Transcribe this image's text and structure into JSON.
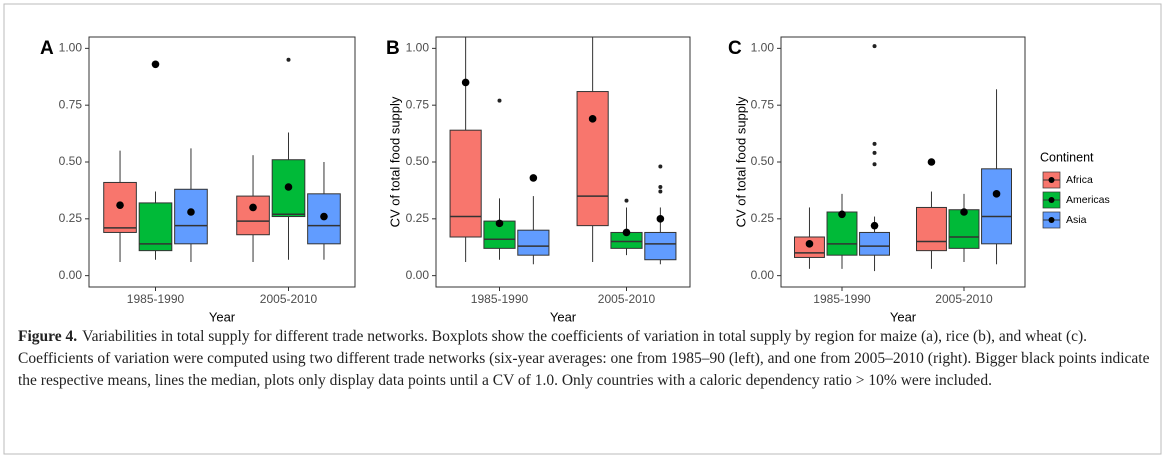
{
  "chart_data": [
    {
      "type": "box",
      "panel_label": "A",
      "xlabel": "Year",
      "categories": [
        "1985-1990",
        "2005-2010"
      ],
      "ylim": [
        -0.05,
        1.05
      ],
      "yticks": [
        {
          "value": 0,
          "label": "0.00"
        },
        {
          "value": 0.25,
          "label": "0.25"
        },
        {
          "value": 0.5,
          "label": "0.50"
        },
        {
          "value": 0.75,
          "label": "0.75"
        },
        {
          "value": 1,
          "label": "1.00"
        }
      ],
      "series": [
        {
          "color": "#F8766D",
          "min": [
            0.06,
            0.06
          ],
          "q1": [
            0.19,
            0.18
          ],
          "median": [
            0.21,
            0.24
          ],
          "q3": [
            0.41,
            0.35
          ],
          "max": [
            0.55,
            0.53
          ],
          "mean": [
            0.31,
            0.3
          ],
          "outliers": [
            [],
            []
          ]
        },
        {
          "color": "#00BA38",
          "min": [
            0.07,
            0.07
          ],
          "q1": [
            0.11,
            0.26
          ],
          "median": [
            0.14,
            0.27
          ],
          "q3": [
            0.32,
            0.51
          ],
          "max": [
            0.37,
            0.63
          ],
          "mean": [
            0.93,
            0.39
          ],
          "outliers": [
            [],
            [
              0.95
            ]
          ]
        },
        {
          "color": "#619CFF",
          "min": [
            0.06,
            0.07
          ],
          "q1": [
            0.14,
            0.14
          ],
          "median": [
            0.22,
            0.22
          ],
          "q3": [
            0.38,
            0.36
          ],
          "max": [
            0.56,
            0.5
          ],
          "mean": [
            0.28,
            0.26
          ],
          "outliers": [
            [],
            []
          ]
        }
      ]
    },
    {
      "type": "box",
      "panel_label": "B",
      "xlabel": "Year",
      "ylabel": "CV of total food supply",
      "categories": [
        "1985-1990",
        "2005-2010"
      ],
      "ylim": [
        -0.05,
        1.05
      ],
      "yticks": [
        {
          "value": 0,
          "label": "0.00"
        },
        {
          "value": 0.25,
          "label": "0.25"
        },
        {
          "value": 0.5,
          "label": "0.50"
        },
        {
          "value": 0.75,
          "label": "0.75"
        },
        {
          "value": 1,
          "label": "1.00"
        }
      ],
      "series": [
        {
          "color": "#F8766D",
          "min": [
            0.06,
            0.06
          ],
          "q1": [
            0.17,
            0.22
          ],
          "median": [
            0.26,
            0.35
          ],
          "q3": [
            0.64,
            0.81
          ],
          "max": [
            1.05,
            1.05
          ],
          "mean": [
            0.85,
            0.69
          ],
          "outliers": [
            [],
            []
          ]
        },
        {
          "color": "#00BA38",
          "min": [
            0.07,
            0.09
          ],
          "q1": [
            0.12,
            0.12
          ],
          "median": [
            0.16,
            0.15
          ],
          "q3": [
            0.24,
            0.19
          ],
          "max": [
            0.34,
            0.3
          ],
          "mean": [
            0.23,
            0.19
          ],
          "outliers": [
            [
              0.77
            ],
            [
              0.33
            ]
          ]
        },
        {
          "color": "#619CFF",
          "min": [
            0.05,
            0.05
          ],
          "q1": [
            0.09,
            0.07
          ],
          "median": [
            0.13,
            0.14
          ],
          "q3": [
            0.2,
            0.19
          ],
          "max": [
            0.35,
            0.3
          ],
          "mean": [
            0.43,
            0.25
          ],
          "outliers": [
            [],
            [
              0.37,
              0.39,
              0.48
            ]
          ]
        }
      ]
    },
    {
      "type": "box",
      "panel_label": "C",
      "xlabel": "Year",
      "ylabel": "CV of total food supply",
      "categories": [
        "1985-1990",
        "2005-2010"
      ],
      "ylim": [
        -0.05,
        1.05
      ],
      "yticks": [
        {
          "value": 0,
          "label": "0.00"
        },
        {
          "value": 0.25,
          "label": "0.25"
        },
        {
          "value": 0.5,
          "label": "0.50"
        },
        {
          "value": 0.75,
          "label": "0.75"
        },
        {
          "value": 1,
          "label": "1.00"
        }
      ],
      "legend_title": "Continent",
      "series": [
        {
          "name": "Africa",
          "color": "#F8766D",
          "min": [
            0.03,
            0.03
          ],
          "q1": [
            0.08,
            0.11
          ],
          "median": [
            0.1,
            0.15
          ],
          "q3": [
            0.17,
            0.3
          ],
          "max": [
            0.3,
            0.37
          ],
          "mean": [
            0.14,
            0.5
          ],
          "outliers": [
            [],
            []
          ]
        },
        {
          "name": "Americas",
          "color": "#00BA38",
          "min": [
            0.03,
            0.06
          ],
          "q1": [
            0.09,
            0.12
          ],
          "median": [
            0.14,
            0.17
          ],
          "q3": [
            0.28,
            0.29
          ],
          "max": [
            0.36,
            0.36
          ],
          "mean": [
            0.27,
            0.28
          ],
          "outliers": [
            [],
            []
          ]
        },
        {
          "name": "Asia",
          "color": "#619CFF",
          "min": [
            0.02,
            0.05
          ],
          "q1": [
            0.09,
            0.14
          ],
          "median": [
            0.13,
            0.26
          ],
          "q3": [
            0.19,
            0.47
          ],
          "max": [
            0.26,
            0.82
          ],
          "mean": [
            0.22,
            0.36
          ],
          "outliers": [
            [
              0.49,
              0.54,
              0.58,
              1.01
            ],
            []
          ]
        }
      ]
    }
  ],
  "caption": {
    "label": "Figure 4.",
    "text": "Variabilities in total supply for different trade networks. Boxplots show the coefficients of variation in total supply by region for maize (a), rice (b), and wheat (c). Coefficients of variation were computed using two different trade networks (six-year averages: one from 1985–90 (left), and one from 2005–2010 (right). Bigger black points indicate the respective means, lines the median, plots only display data points until a CV of 1.0. Only countries with a caloric dependency ratio > 10% were included."
  }
}
